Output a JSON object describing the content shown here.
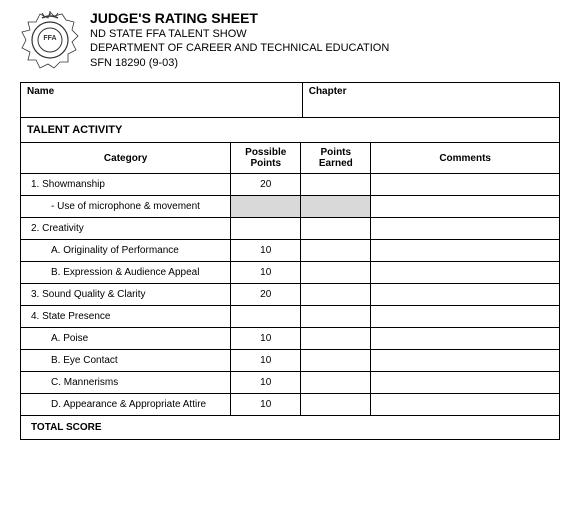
{
  "header": {
    "title": "JUDGE'S RATING SHEET",
    "line1": "ND STATE FFA TALENT SHOW",
    "line2": "DEPARTMENT OF CAREER AND TECHNICAL EDUCATION",
    "line3": "SFN 18290 (9-03)"
  },
  "info": {
    "name_label": "Name",
    "chapter_label": "Chapter"
  },
  "section_title": "TALENT ACTIVITY",
  "columns": {
    "category": "Category",
    "possible": "Possible Points",
    "earned": "Points Earned",
    "comments": "Comments"
  },
  "rows": [
    {
      "label": "1.    Showmanship",
      "sub": false,
      "points": "20",
      "shaded": false
    },
    {
      "label": "- Use of microphone & movement",
      "sub": true,
      "points": "",
      "shaded": true
    },
    {
      "label": "2.    Creativity",
      "sub": false,
      "points": "",
      "shaded": false
    },
    {
      "label": "A.  Originality of Performance",
      "sub": true,
      "points": "10",
      "shaded": false
    },
    {
      "label": "B.  Expression & Audience Appeal",
      "sub": true,
      "points": "10",
      "shaded": false
    },
    {
      "label": "3.    Sound Quality & Clarity",
      "sub": false,
      "points": "20",
      "shaded": false
    },
    {
      "label": "4.    State Presence",
      "sub": false,
      "points": "",
      "shaded": false
    },
    {
      "label": "A.  Poise",
      "sub": true,
      "points": "10",
      "shaded": false
    },
    {
      "label": "B.  Eye Contact",
      "sub": true,
      "points": "10",
      "shaded": false
    },
    {
      "label": "C.  Mannerisms",
      "sub": true,
      "points": "10",
      "shaded": false
    },
    {
      "label": "D.  Appearance & Appropriate Attire",
      "sub": true,
      "points": "10",
      "shaded": false
    }
  ],
  "total_label": "TOTAL SCORE",
  "colors": {
    "shaded": "#d9d9d9",
    "border": "#000000",
    "background": "#ffffff"
  }
}
